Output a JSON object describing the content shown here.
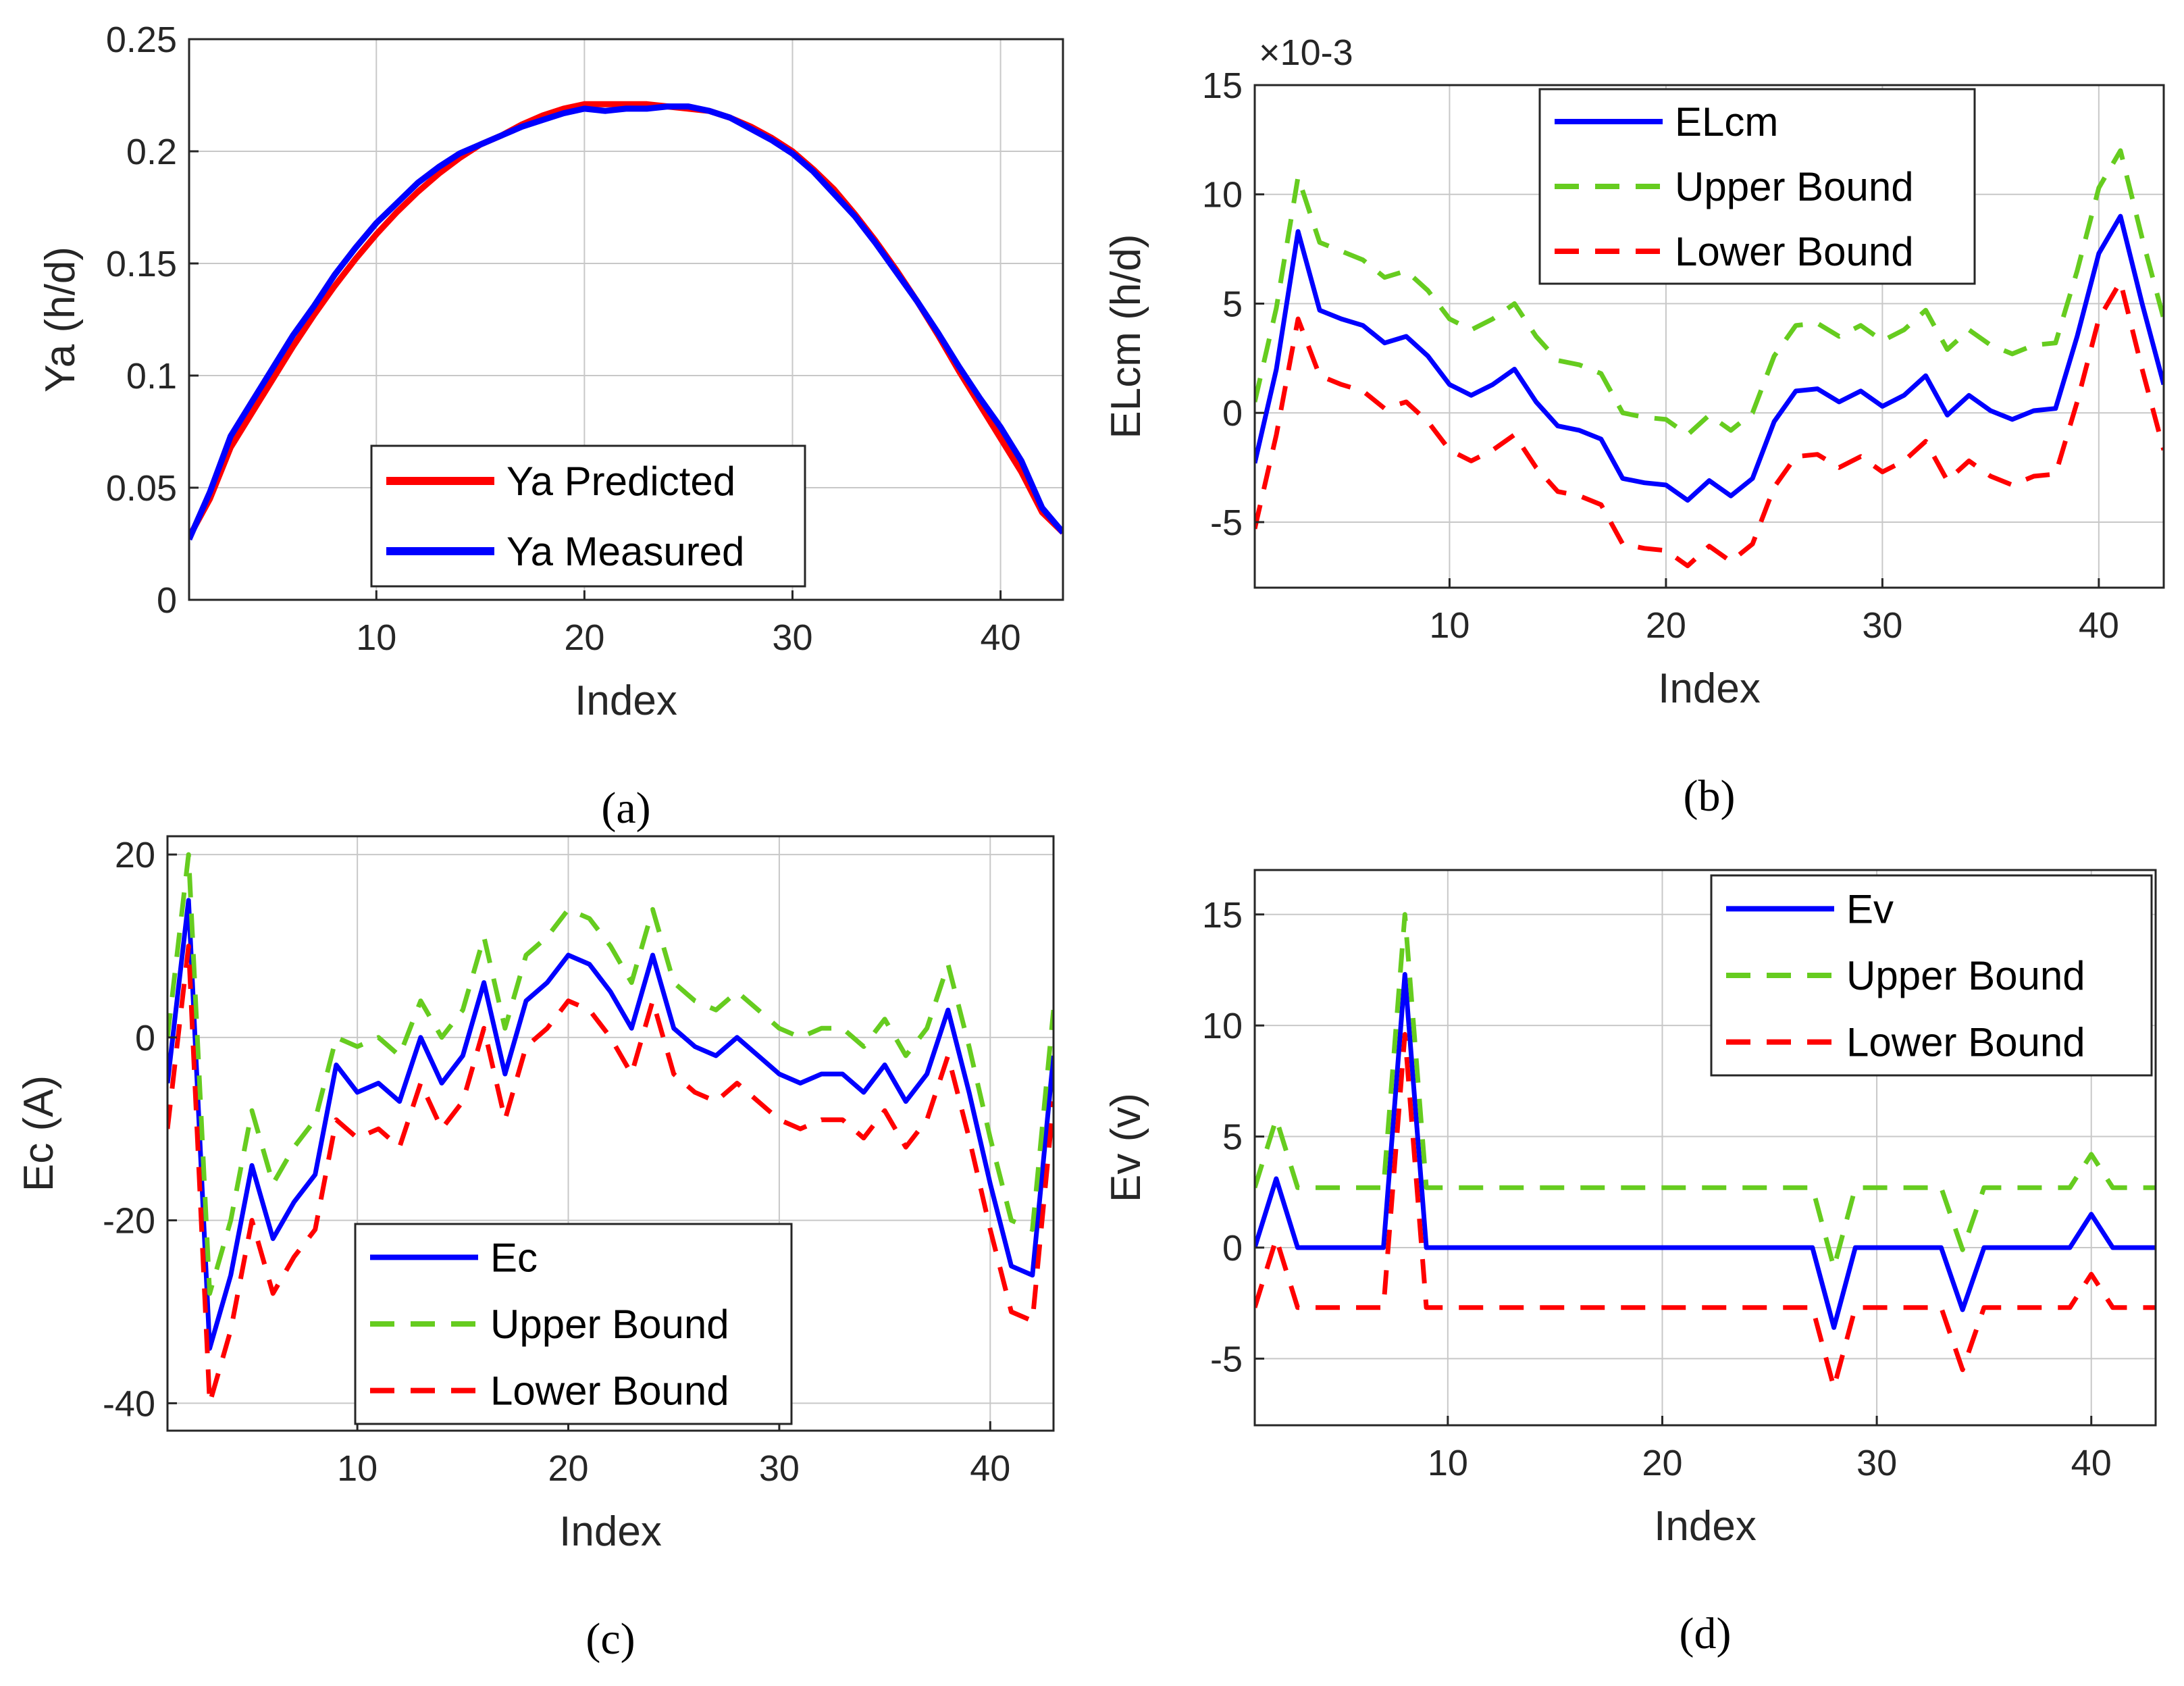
{
  "chart_data": [
    {
      "id": "a",
      "type": "line",
      "caption": "(a)",
      "xlabel": "Index",
      "ylabel": "Ya (h/d)",
      "xlim": [
        1,
        43
      ],
      "ylim": [
        0,
        0.25
      ],
      "xticks": [
        10,
        20,
        30,
        40
      ],
      "yticks": [
        0,
        0.05,
        0.1,
        0.15,
        0.2,
        0.25
      ],
      "ytick_labels": [
        "0",
        "0.05",
        "0.1",
        "0.15",
        "0.2",
        "0.25"
      ],
      "exponent_label": "",
      "legend_position": "bottom-center",
      "grid": true,
      "series": [
        {
          "name": "Ya Predicted",
          "color": "#ff0000",
          "dash": "solid",
          "values": [
            0.028,
            0.045,
            0.068,
            0.083,
            0.098,
            0.113,
            0.127,
            0.14,
            0.152,
            0.163,
            0.173,
            0.182,
            0.19,
            0.197,
            0.203,
            0.207,
            0.212,
            0.216,
            0.219,
            0.221,
            0.221,
            0.221,
            0.221,
            0.22,
            0.219,
            0.218,
            0.215,
            0.211,
            0.206,
            0.2,
            0.192,
            0.183,
            0.172,
            0.16,
            0.147,
            0.133,
            0.118,
            0.102,
            0.087,
            0.072,
            0.057,
            0.039,
            0.03
          ]
        },
        {
          "name": "Ya Measured",
          "color": "#0000ff",
          "dash": "solid",
          "values": [
            0.027,
            0.048,
            0.073,
            0.088,
            0.103,
            0.118,
            0.131,
            0.145,
            0.157,
            0.168,
            0.177,
            0.186,
            0.193,
            0.199,
            0.203,
            0.207,
            0.211,
            0.214,
            0.217,
            0.219,
            0.218,
            0.219,
            0.219,
            0.22,
            0.22,
            0.218,
            0.215,
            0.21,
            0.205,
            0.199,
            0.191,
            0.181,
            0.171,
            0.159,
            0.146,
            0.133,
            0.119,
            0.104,
            0.09,
            0.077,
            0.062,
            0.041,
            0.03
          ]
        }
      ]
    },
    {
      "id": "b",
      "type": "line",
      "caption": "(b)",
      "xlabel": "Index",
      "ylabel": "ELcm (h/d)",
      "xlim": [
        1,
        43
      ],
      "ylim": [
        -8,
        15
      ],
      "xticks": [
        10,
        20,
        30,
        40
      ],
      "yticks": [
        -5,
        0,
        5,
        10,
        15
      ],
      "ytick_labels": [
        "-5",
        "0",
        "5",
        "10",
        "15"
      ],
      "exponent_label": "×10-3",
      "legend_position": "top-center",
      "grid": true,
      "series": [
        {
          "name": "ELcm",
          "color": "#0000ff",
          "dash": "solid",
          "values": [
            -2.3,
            2.0,
            8.3,
            4.7,
            4.3,
            4.0,
            3.2,
            3.5,
            2.6,
            1.3,
            0.8,
            1.3,
            2.0,
            0.5,
            -0.6,
            -0.8,
            -1.2,
            -3.0,
            -3.2,
            -3.3,
            -4.0,
            -3.1,
            -3.8,
            -3.0,
            -0.4,
            1.0,
            1.1,
            0.5,
            1.0,
            0.3,
            0.8,
            1.7,
            -0.1,
            0.8,
            0.1,
            -0.3,
            0.1,
            0.2,
            3.5,
            7.3,
            9.0,
            5.0,
            1.3
          ]
        },
        {
          "name": "Upper Bound",
          "color": "#66cc1f",
          "dash": "dashed",
          "values": [
            0.5,
            4.8,
            10.8,
            7.8,
            7.4,
            7.0,
            6.2,
            6.5,
            5.6,
            4.3,
            3.8,
            4.3,
            5.0,
            3.5,
            2.4,
            2.2,
            1.8,
            0.0,
            -0.2,
            -0.3,
            -1.0,
            -0.1,
            -0.8,
            0.0,
            2.6,
            4.0,
            4.1,
            3.5,
            4.0,
            3.3,
            3.8,
            4.7,
            2.9,
            3.8,
            3.1,
            2.7,
            3.1,
            3.2,
            6.5,
            10.3,
            12.0,
            8.0,
            4.3
          ]
        },
        {
          "name": "Lower Bound",
          "color": "#ff0000",
          "dash": "dashed",
          "values": [
            -5.3,
            -1.0,
            4.3,
            1.7,
            1.3,
            1.0,
            0.2,
            0.5,
            -0.4,
            -1.7,
            -2.2,
            -1.7,
            -1.0,
            -2.5,
            -3.6,
            -3.8,
            -4.2,
            -6.0,
            -6.2,
            -6.3,
            -7.0,
            -6.1,
            -6.8,
            -6.0,
            -3.4,
            -2.0,
            -1.9,
            -2.5,
            -2.0,
            -2.7,
            -2.2,
            -1.3,
            -3.1,
            -2.2,
            -2.9,
            -3.3,
            -2.9,
            -2.8,
            0.5,
            4.3,
            6.0,
            2.0,
            -1.7
          ]
        }
      ]
    },
    {
      "id": "c",
      "type": "line",
      "caption": "(c)",
      "xlabel": "Index",
      "ylabel": "Ec (A)",
      "xlim": [
        1,
        43
      ],
      "ylim": [
        -43,
        22
      ],
      "xticks": [
        10,
        20,
        30,
        40
      ],
      "yticks": [
        -40,
        -20,
        0,
        20
      ],
      "ytick_labels": [
        "-40",
        "-20",
        "0",
        "20"
      ],
      "exponent_label": "",
      "legend_position": "bottom-left",
      "grid": true,
      "series": [
        {
          "name": "Ec",
          "color": "#0000ff",
          "dash": "solid",
          "values": [
            -5,
            15,
            -34,
            -26,
            -14,
            -22,
            -18,
            -15,
            -3,
            -6,
            -5,
            -7,
            0,
            -5,
            -2,
            6,
            -4,
            4,
            6,
            9,
            8,
            5,
            1,
            9,
            1,
            -1,
            -2,
            0,
            -2,
            -4,
            -5,
            -4,
            -4,
            -6,
            -3,
            -7,
            -4,
            3,
            -6,
            -16,
            -25,
            -26,
            -2
          ]
        },
        {
          "name": "Upper Bound",
          "color": "#66cc1f",
          "dash": "dashed",
          "values": [
            0,
            20,
            -28,
            -20,
            -8,
            -16,
            -12,
            -9,
            0,
            -1,
            0,
            -2,
            4,
            0,
            3,
            11,
            1,
            9,
            11,
            14,
            13,
            10,
            6,
            14,
            6,
            4,
            3,
            5,
            3,
            1,
            0,
            1,
            1,
            -1,
            2,
            -2,
            1,
            8,
            -1,
            -11,
            -20,
            -21,
            3
          ]
        },
        {
          "name": "Lower Bound",
          "color": "#ff0000",
          "dash": "dashed",
          "values": [
            -10,
            10,
            -40,
            -32,
            -20,
            -28,
            -24,
            -21,
            -9,
            -11,
            -10,
            -12,
            -5,
            -10,
            -7,
            1,
            -9,
            -1,
            1,
            4,
            3,
            0,
            -4,
            4,
            -4,
            -6,
            -7,
            -5,
            -7,
            -9,
            -10,
            -9,
            -9,
            -11,
            -8,
            -12,
            -9,
            -2,
            -11,
            -21,
            -30,
            -31,
            -7
          ]
        }
      ]
    },
    {
      "id": "d",
      "type": "line",
      "caption": "(d)",
      "xlabel": "Index",
      "ylabel": "Ev (v)",
      "xlim": [
        1,
        43
      ],
      "ylim": [
        -8,
        17
      ],
      "xticks": [
        10,
        20,
        30,
        40
      ],
      "yticks": [
        -5,
        0,
        5,
        10,
        15
      ],
      "ytick_labels": [
        "-5",
        "0",
        "5",
        "10",
        "15"
      ],
      "exponent_label": "",
      "legend_position": "top-right",
      "grid": true,
      "series": [
        {
          "name": "Ev",
          "color": "#0000ff",
          "dash": "solid",
          "values": [
            0,
            3.1,
            0,
            0,
            0,
            0,
            0,
            12.3,
            0,
            0,
            0,
            0,
            0,
            0,
            0,
            0,
            0,
            0,
            0,
            0,
            0,
            0,
            0,
            0,
            0,
            0,
            0,
            -3.6,
            0,
            0,
            0,
            0,
            0,
            -2.8,
            0,
            0,
            0,
            0,
            0,
            1.5,
            0,
            0,
            0
          ]
        },
        {
          "name": "Upper Bound",
          "color": "#66cc1f",
          "dash": "dashed",
          "values": [
            2.7,
            5.8,
            2.7,
            2.7,
            2.7,
            2.7,
            2.7,
            15.0,
            2.7,
            2.7,
            2.7,
            2.7,
            2.7,
            2.7,
            2.7,
            2.7,
            2.7,
            2.7,
            2.7,
            2.7,
            2.7,
            2.7,
            2.7,
            2.7,
            2.7,
            2.7,
            2.7,
            -0.9,
            2.7,
            2.7,
            2.7,
            2.7,
            2.7,
            -0.1,
            2.7,
            2.7,
            2.7,
            2.7,
            2.7,
            4.2,
            2.7,
            2.7,
            2.7
          ]
        },
        {
          "name": "Lower Bound",
          "color": "#ff0000",
          "dash": "dashed",
          "values": [
            -2.7,
            0.4,
            -2.7,
            -2.7,
            -2.7,
            -2.7,
            -2.7,
            9.6,
            -2.7,
            -2.7,
            -2.7,
            -2.7,
            -2.7,
            -2.7,
            -2.7,
            -2.7,
            -2.7,
            -2.7,
            -2.7,
            -2.7,
            -2.7,
            -2.7,
            -2.7,
            -2.7,
            -2.7,
            -2.7,
            -2.7,
            -6.3,
            -2.7,
            -2.7,
            -2.7,
            -2.7,
            -2.7,
            -5.5,
            -2.7,
            -2.7,
            -2.7,
            -2.7,
            -2.7,
            -1.2,
            -2.7,
            -2.7,
            -2.7
          ]
        }
      ]
    }
  ]
}
